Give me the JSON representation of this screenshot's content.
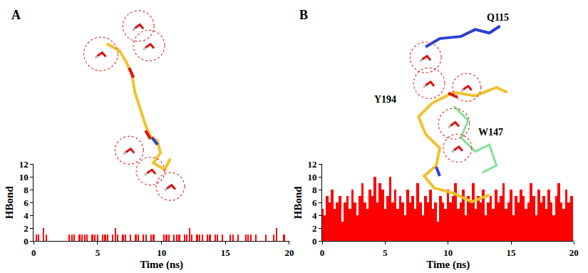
{
  "chart_data": [
    {
      "type": "bar",
      "annotations": [
        "A"
      ],
      "x_label": "Time (ns)",
      "y_label": "HBond",
      "x": [
        0,
        0.2,
        0.4,
        0.6,
        0.8,
        1,
        1.2,
        1.4,
        1.6,
        1.8,
        2,
        2.2,
        2.4,
        2.6,
        2.8,
        3,
        3.2,
        3.4,
        3.6,
        3.8,
        4,
        4.2,
        4.4,
        4.6,
        4.8,
        5,
        5.2,
        5.4,
        5.6,
        5.8,
        6,
        6.2,
        6.4,
        6.6,
        6.8,
        7,
        7.2,
        7.4,
        7.6,
        7.8,
        8,
        8.2,
        8.4,
        8.6,
        8.8,
        9,
        9.2,
        9.4,
        9.6,
        9.8,
        10,
        10.2,
        10.4,
        10.6,
        10.8,
        11,
        11.2,
        11.4,
        11.6,
        11.8,
        12,
        12.2,
        12.4,
        12.6,
        12.8,
        13,
        13.2,
        13.4,
        13.6,
        13.8,
        14,
        14.2,
        14.4,
        14.6,
        14.8,
        15,
        15.2,
        15.4,
        15.6,
        15.8,
        16,
        16.2,
        16.4,
        16.6,
        16.8,
        17,
        17.2,
        17.4,
        17.6,
        17.8,
        18,
        18.2,
        18.4,
        18.6,
        18.8,
        19,
        19.2,
        19.4,
        19.6,
        19.8
      ],
      "values": [
        0,
        1,
        1,
        0,
        2,
        1,
        0,
        0,
        0,
        0,
        0,
        0,
        0,
        0,
        1,
        1,
        1,
        0,
        1,
        1,
        1,
        1,
        0,
        1,
        1,
        1,
        0,
        1,
        1,
        1,
        0,
        1,
        2,
        1,
        0,
        1,
        1,
        0,
        1,
        0,
        1,
        1,
        0,
        1,
        1,
        0,
        1,
        1,
        0,
        0,
        0,
        1,
        1,
        1,
        0,
        1,
        1,
        1,
        0,
        1,
        1,
        2,
        1,
        0,
        1,
        1,
        1,
        0,
        1,
        1,
        0,
        1,
        1,
        0,
        1,
        0,
        0,
        1,
        1,
        0,
        1,
        0,
        0,
        1,
        1,
        1,
        0,
        1,
        0,
        0,
        0,
        1,
        0,
        0,
        1,
        2,
        0,
        0,
        1,
        0
      ],
      "color": "#ff0000",
      "xlim": [
        0,
        20
      ],
      "xticks": [
        0,
        5,
        10,
        15,
        20
      ],
      "ylim": [
        0,
        12
      ],
      "yticks": [
        0,
        2,
        4,
        6,
        8,
        10,
        12
      ],
      "grid": false
    },
    {
      "type": "bar",
      "annotations": [
        "B",
        "Q115",
        "Y194",
        "W147"
      ],
      "x_label": "Time (ns)",
      "y_label": "HBond",
      "x": [
        0,
        0.2,
        0.4,
        0.6,
        0.8,
        1,
        1.2,
        1.4,
        1.6,
        1.8,
        2,
        2.2,
        2.4,
        2.6,
        2.8,
        3,
        3.2,
        3.4,
        3.6,
        3.8,
        4,
        4.2,
        4.4,
        4.6,
        4.8,
        5,
        5.2,
        5.4,
        5.6,
        5.8,
        6,
        6.2,
        6.4,
        6.6,
        6.8,
        7,
        7.2,
        7.4,
        7.6,
        7.8,
        8,
        8.2,
        8.4,
        8.6,
        8.8,
        9,
        9.2,
        9.4,
        9.6,
        9.8,
        10,
        10.2,
        10.4,
        10.6,
        10.8,
        11,
        11.2,
        11.4,
        11.6,
        11.8,
        12,
        12.2,
        12.4,
        12.6,
        12.8,
        13,
        13.2,
        13.4,
        13.6,
        13.8,
        14,
        14.2,
        14.4,
        14.6,
        14.8,
        15,
        15.2,
        15.4,
        15.6,
        15.8,
        16,
        16.2,
        16.4,
        16.6,
        16.8,
        17,
        17.2,
        17.4,
        17.6,
        17.8,
        18,
        18.2,
        18.4,
        18.6,
        18.8,
        19,
        19.2,
        19.4,
        19.6,
        19.8
      ],
      "values": [
        5,
        4,
        7,
        6,
        8,
        5,
        6,
        7,
        3,
        6,
        7,
        5,
        8,
        6,
        4,
        7,
        9,
        6,
        5,
        8,
        7,
        10,
        6,
        9,
        8,
        5,
        7,
        10,
        6,
        8,
        5,
        7,
        6,
        4,
        8,
        6,
        7,
        5,
        9,
        6,
        4,
        7,
        6,
        8,
        5,
        6,
        3,
        7,
        6,
        5,
        8,
        6,
        7,
        9,
        5,
        6,
        8,
        4,
        7,
        6,
        9,
        5,
        7,
        6,
        8,
        4,
        6,
        7,
        5,
        8,
        6,
        7,
        9,
        5,
        6,
        8,
        4,
        7,
        6,
        8,
        7,
        5,
        6,
        9,
        7,
        4,
        8,
        6,
        7,
        5,
        8,
        6,
        4,
        7,
        9,
        6,
        5,
        8,
        6,
        7
      ],
      "color": "#ff0000",
      "xlim": [
        0,
        20
      ],
      "xticks": [
        0,
        5,
        10,
        15,
        20
      ],
      "ylim": [
        0,
        12
      ],
      "yticks": [
        0,
        2,
        4,
        6,
        8,
        10,
        12
      ],
      "grid": false
    }
  ]
}
